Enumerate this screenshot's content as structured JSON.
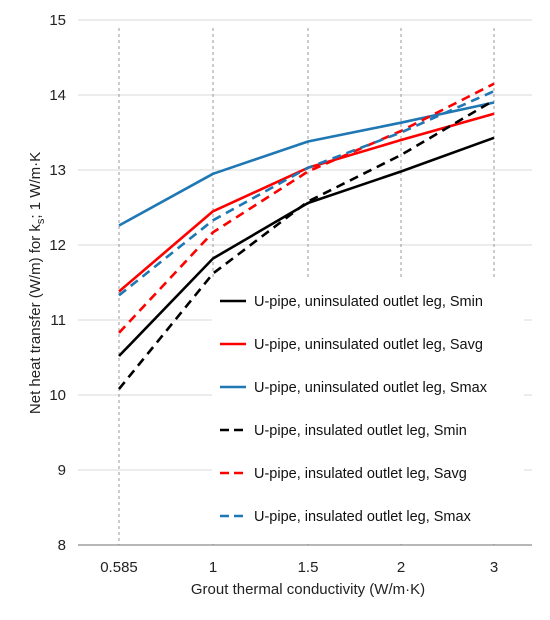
{
  "chart_data": {
    "type": "line",
    "categories": [
      "0.585",
      "1",
      "1.5",
      "2",
      "3"
    ],
    "xlabel": "Grout thermal conductivity (W/m·K)",
    "ylabel_parts": {
      "main": "Net heat transfer (W/m) for k",
      "subscript": "s",
      "tail": "; 1 W/m·K"
    },
    "ylim": [
      8,
      15
    ],
    "yticks": [
      "8",
      "9",
      "10",
      "11",
      "12",
      "13",
      "14",
      "15"
    ],
    "grid": {
      "horizontal": true,
      "vertical": "dotted at categories"
    },
    "legend": {
      "placement": "inside, lower right"
    },
    "series": [
      {
        "name": "U-pipe, uninsulated outlet leg, Smin",
        "color": "#000000",
        "dash": "solid",
        "values": [
          10.52,
          11.82,
          12.56,
          12.98,
          13.43
        ]
      },
      {
        "name": "U-pipe, uninsulated outlet leg, Savg",
        "color": "#ff0000",
        "dash": "solid",
        "values": [
          11.38,
          12.45,
          13.03,
          13.4,
          13.75
        ]
      },
      {
        "name": "U-pipe, uninsulated outlet leg, Smax",
        "color": "#1f77b4",
        "dash": "solid",
        "values": [
          12.26,
          12.95,
          13.38,
          13.63,
          13.9
        ]
      },
      {
        "name": "U-pipe, insulated outlet leg, Smin",
        "color": "#000000",
        "dash": "dashed",
        "values": [
          10.08,
          11.62,
          12.58,
          13.2,
          13.93
        ]
      },
      {
        "name": "U-pipe, insulated outlet leg, Savg",
        "color": "#ff0000",
        "dash": "dashed",
        "values": [
          10.83,
          12.17,
          12.98,
          13.52,
          14.15
        ]
      },
      {
        "name": "U-pipe, insulated outlet leg, Smax",
        "color": "#1f77b4",
        "dash": "dashed",
        "values": [
          11.33,
          12.33,
          13.03,
          13.5,
          14.05
        ]
      }
    ]
  }
}
